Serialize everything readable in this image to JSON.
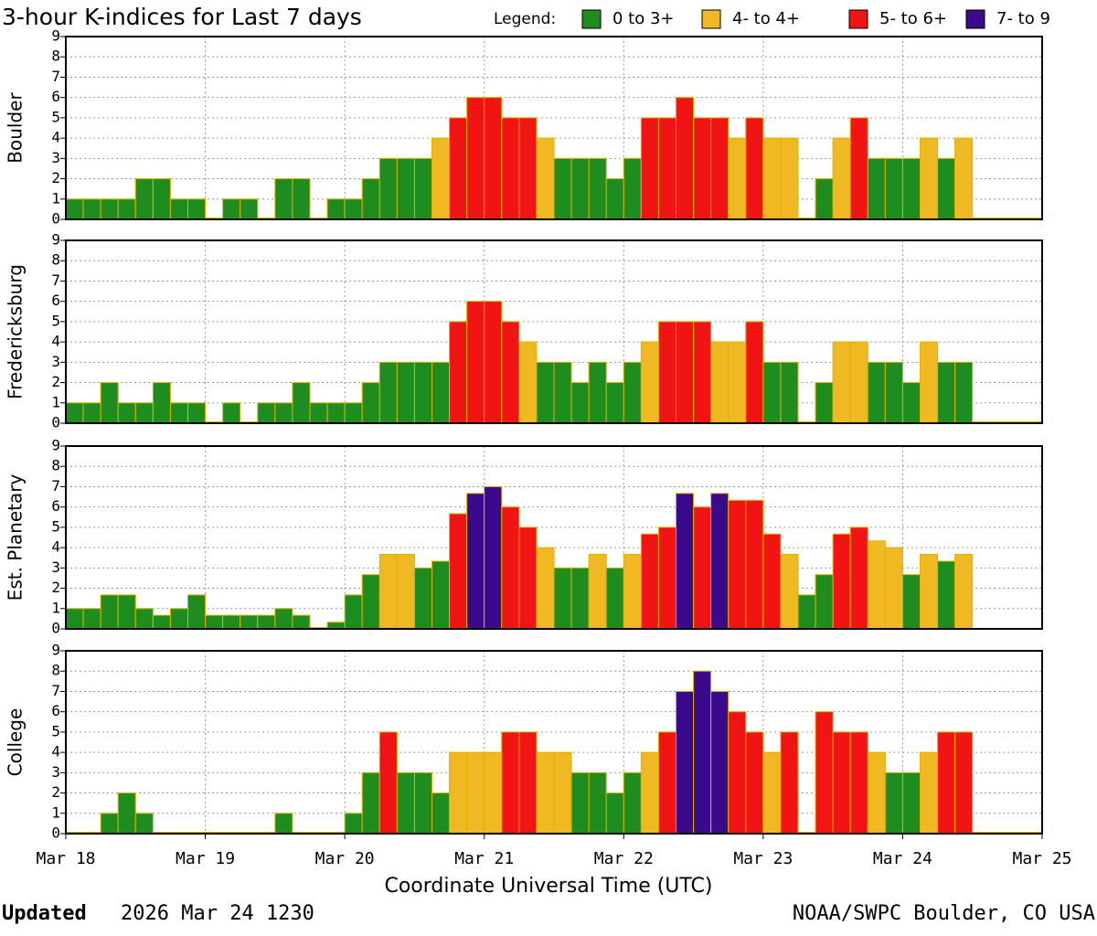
{
  "chart_data": {
    "type": "bar",
    "title": "3-hour K-indices for Last 7 days",
    "legend": {
      "label": "Legend:",
      "items": [
        {
          "label": "0 to 3+",
          "color": "#1e8c1e"
        },
        {
          "label": "4- to 4+",
          "color": "#f0b823"
        },
        {
          "label": "5- to 6+",
          "color": "#f01414"
        },
        {
          "label": "7- to 9",
          "color": "#3a0a8c"
        }
      ]
    },
    "xticks": [
      "Mar 18",
      "Mar 19",
      "Mar 20",
      "Mar 21",
      "Mar 22",
      "Mar 23",
      "Mar 24",
      "Mar 25"
    ],
    "x_label": "Coordinate Universal Time (UTC)",
    "ylim": [
      0,
      9
    ],
    "yticks": [
      0,
      1,
      2,
      3,
      4,
      5,
      6,
      7,
      8,
      9
    ],
    "grid": true,
    "panels": [
      {
        "name": "Boulder",
        "values": [
          1,
          1,
          1,
          1,
          2,
          2,
          1,
          1,
          0,
          1,
          1,
          0,
          2,
          2,
          0,
          1,
          1,
          2,
          3,
          3,
          3,
          4,
          5,
          6,
          6,
          5,
          5,
          4,
          3,
          3,
          3,
          2,
          3,
          5,
          5,
          6,
          5,
          5,
          4,
          5,
          4,
          4,
          0,
          2,
          4,
          5,
          3,
          3,
          3,
          4,
          3,
          4,
          0,
          0,
          0,
          0
        ],
        "colors": [
          "#1e8c1e",
          "#1e8c1e",
          "#1e8c1e",
          "#1e8c1e",
          "#1e8c1e",
          "#1e8c1e",
          "#1e8c1e",
          "#1e8c1e",
          "#1e8c1e",
          "#1e8c1e",
          "#1e8c1e",
          "#1e8c1e",
          "#1e8c1e",
          "#1e8c1e",
          "#1e8c1e",
          "#1e8c1e",
          "#1e8c1e",
          "#1e8c1e",
          "#1e8c1e",
          "#1e8c1e",
          "#1e8c1e",
          "#f0b823",
          "#f01414",
          "#f01414",
          "#f01414",
          "#f01414",
          "#f01414",
          "#f0b823",
          "#1e8c1e",
          "#1e8c1e",
          "#1e8c1e",
          "#1e8c1e",
          "#1e8c1e",
          "#f01414",
          "#f01414",
          "#f01414",
          "#f01414",
          "#f01414",
          "#f0b823",
          "#f01414",
          "#f0b823",
          "#f0b823",
          "#1e8c1e",
          "#1e8c1e",
          "#f0b823",
          "#f01414",
          "#1e8c1e",
          "#1e8c1e",
          "#1e8c1e",
          "#f0b823",
          "#1e8c1e",
          "#f0b823",
          "#1e8c1e",
          "#1e8c1e",
          "#1e8c1e",
          "#1e8c1e"
        ]
      },
      {
        "name": "Fredericksburg",
        "values": [
          1,
          1,
          2,
          1,
          1,
          2,
          1,
          1,
          0,
          1,
          0,
          1,
          1,
          2,
          1,
          1,
          1,
          2,
          3,
          3,
          3,
          3,
          5,
          6,
          6,
          5,
          4,
          3,
          3,
          2,
          3,
          2,
          3,
          4,
          5,
          5,
          5,
          4,
          4,
          5,
          3,
          3,
          0,
          2,
          4,
          4,
          3,
          3,
          2,
          4,
          3,
          3,
          0,
          0,
          0,
          0
        ],
        "colors": [
          "#1e8c1e",
          "#1e8c1e",
          "#1e8c1e",
          "#1e8c1e",
          "#1e8c1e",
          "#1e8c1e",
          "#1e8c1e",
          "#1e8c1e",
          "#1e8c1e",
          "#1e8c1e",
          "#1e8c1e",
          "#1e8c1e",
          "#1e8c1e",
          "#1e8c1e",
          "#1e8c1e",
          "#1e8c1e",
          "#1e8c1e",
          "#1e8c1e",
          "#1e8c1e",
          "#1e8c1e",
          "#1e8c1e",
          "#1e8c1e",
          "#f01414",
          "#f01414",
          "#f01414",
          "#f01414",
          "#f0b823",
          "#1e8c1e",
          "#1e8c1e",
          "#1e8c1e",
          "#1e8c1e",
          "#1e8c1e",
          "#1e8c1e",
          "#f0b823",
          "#f01414",
          "#f01414",
          "#f01414",
          "#f0b823",
          "#f0b823",
          "#f01414",
          "#1e8c1e",
          "#1e8c1e",
          "#1e8c1e",
          "#1e8c1e",
          "#f0b823",
          "#f0b823",
          "#1e8c1e",
          "#1e8c1e",
          "#1e8c1e",
          "#f0b823",
          "#1e8c1e",
          "#1e8c1e",
          "#1e8c1e",
          "#1e8c1e",
          "#1e8c1e",
          "#1e8c1e"
        ]
      },
      {
        "name": "Est. Planetary",
        "values": [
          1,
          1,
          1.67,
          1.67,
          1,
          0.67,
          1,
          1.67,
          0.67,
          0.67,
          0.67,
          0.67,
          1,
          0.67,
          0,
          0.33,
          1.67,
          2.67,
          3.67,
          3.67,
          3,
          3.33,
          5.67,
          6.67,
          7,
          6,
          5,
          4,
          3,
          3,
          3.67,
          3,
          3.67,
          4.67,
          5,
          6.67,
          6,
          6.67,
          6.33,
          6.33,
          4.67,
          3.67,
          1.67,
          2.67,
          4.67,
          5,
          4.33,
          4,
          2.67,
          3.67,
          3.33,
          3.67,
          null,
          null,
          null,
          null
        ],
        "colors": [
          "#1e8c1e",
          "#1e8c1e",
          "#1e8c1e",
          "#1e8c1e",
          "#1e8c1e",
          "#1e8c1e",
          "#1e8c1e",
          "#1e8c1e",
          "#1e8c1e",
          "#1e8c1e",
          "#1e8c1e",
          "#1e8c1e",
          "#1e8c1e",
          "#1e8c1e",
          "#1e8c1e",
          "#1e8c1e",
          "#1e8c1e",
          "#1e8c1e",
          "#f0b823",
          "#f0b823",
          "#1e8c1e",
          "#1e8c1e",
          "#f01414",
          "#3a0a8c",
          "#3a0a8c",
          "#f01414",
          "#f01414",
          "#f0b823",
          "#1e8c1e",
          "#1e8c1e",
          "#f0b823",
          "#1e8c1e",
          "#f0b823",
          "#f01414",
          "#f01414",
          "#3a0a8c",
          "#f01414",
          "#3a0a8c",
          "#f01414",
          "#f01414",
          "#f01414",
          "#f0b823",
          "#1e8c1e",
          "#1e8c1e",
          "#f01414",
          "#f01414",
          "#f0b823",
          "#f0b823",
          "#1e8c1e",
          "#f0b823",
          "#1e8c1e",
          "#f0b823",
          null,
          null,
          null,
          null
        ]
      },
      {
        "name": "College",
        "values": [
          0,
          0,
          1,
          2,
          1,
          0,
          0,
          0,
          0,
          0,
          0,
          0,
          1,
          0,
          0,
          0,
          1,
          3,
          5,
          3,
          3,
          2,
          4,
          4,
          4,
          5,
          5,
          4,
          4,
          3,
          3,
          2,
          3,
          4,
          5,
          7,
          8,
          7,
          6,
          5,
          4,
          5,
          0,
          6,
          5,
          5,
          4,
          3,
          3,
          4,
          5,
          5,
          0,
          0,
          0,
          0
        ],
        "colors": [
          "#1e8c1e",
          "#1e8c1e",
          "#1e8c1e",
          "#1e8c1e",
          "#1e8c1e",
          "#1e8c1e",
          "#1e8c1e",
          "#1e8c1e",
          "#1e8c1e",
          "#1e8c1e",
          "#1e8c1e",
          "#1e8c1e",
          "#1e8c1e",
          "#1e8c1e",
          "#1e8c1e",
          "#1e8c1e",
          "#1e8c1e",
          "#1e8c1e",
          "#f01414",
          "#1e8c1e",
          "#1e8c1e",
          "#1e8c1e",
          "#f0b823",
          "#f0b823",
          "#f0b823",
          "#f01414",
          "#f01414",
          "#f0b823",
          "#f0b823",
          "#1e8c1e",
          "#1e8c1e",
          "#1e8c1e",
          "#1e8c1e",
          "#f0b823",
          "#f01414",
          "#3a0a8c",
          "#3a0a8c",
          "#3a0a8c",
          "#f01414",
          "#f01414",
          "#f0b823",
          "#f01414",
          "#1e8c1e",
          "#f01414",
          "#f01414",
          "#f01414",
          "#f0b823",
          "#1e8c1e",
          "#1e8c1e",
          "#f0b823",
          "#f01414",
          "#f01414",
          "#1e8c1e",
          "#1e8c1e",
          "#1e8c1e",
          "#1e8c1e"
        ]
      }
    ]
  },
  "footer": {
    "updated_label": "Updated",
    "updated_time": "2026 Mar 24 1230",
    "source": "NOAA/SWPC Boulder, CO USA"
  }
}
